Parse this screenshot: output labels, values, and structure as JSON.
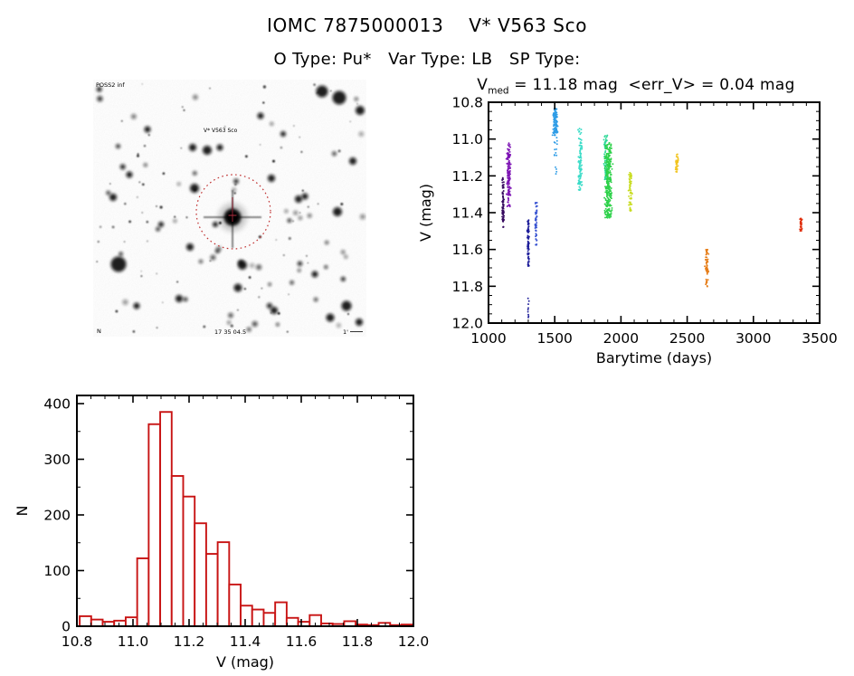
{
  "header": {
    "title": "IOMC 7875000013    V* V563 Sco",
    "subtitle": "O Type: Pu*   Var Type: LB   SP Type:"
  },
  "finder_chart": {
    "survey_label": "POSS2 inf",
    "star_label": "V* V563 Sco",
    "coords_label": "17 35 04.5",
    "orientation_label": "N",
    "scale_label": "1'",
    "marker_color": "#c03030"
  },
  "chart_data": [
    {
      "type": "scatter",
      "title_prefix": "V",
      "title_sub": "med",
      "title_rest": " = 11.18 mag  <err_V> = 0.04 mag",
      "xlabel": "Barytime (days)",
      "ylabel": "V (mag)",
      "xlim": [
        1000,
        3500
      ],
      "ylim": [
        12.0,
        10.8
      ],
      "x_ticks": [
        1000,
        1500,
        2000,
        2500,
        3000,
        3500
      ],
      "y_ticks": [
        10.8,
        11.0,
        11.2,
        11.4,
        11.6,
        11.8,
        12.0
      ],
      "x_minor_step": 100,
      "y_minor_step": 0.05,
      "grid": false,
      "legend": false,
      "clusters": [
        {
          "t": 1110,
          "sx": 0.7,
          "color": "#360a5f",
          "segments": [
            [
              11.21,
              11.48,
              80
            ]
          ]
        },
        {
          "t": 1152,
          "sx": 1.4,
          "color": "#7d14b4",
          "segments": [
            [
              11.02,
              11.09,
              14
            ],
            [
              11.08,
              11.31,
              110
            ],
            [
              11.3,
              11.37,
              12
            ]
          ]
        },
        {
          "t": 1300,
          "sx": 0.7,
          "color": "#1f1f9a",
          "segments": [
            [
              11.44,
              11.69,
              90
            ],
            [
              11.86,
              11.97,
              9
            ]
          ]
        },
        {
          "t": 1360,
          "sx": 0.9,
          "color": "#3a55d2",
          "segments": [
            [
              11.34,
              11.47,
              28
            ],
            [
              11.46,
              11.58,
              22
            ]
          ]
        },
        {
          "t": 1505,
          "sx": 1.6,
          "color": "#2e9ce6",
          "segments": [
            [
              10.83,
              10.97,
              110
            ],
            [
              10.96,
              11.09,
              18
            ],
            [
              11.15,
              11.19,
              4
            ]
          ]
        },
        {
          "t": 1692,
          "sx": 1.3,
          "color": "#3cdcc8",
          "segments": [
            [
              10.94,
              11.03,
              12
            ],
            [
              11.02,
              11.28,
              95
            ]
          ]
        },
        {
          "t": 1885,
          "sx": 1.2,
          "color": "#2bd896",
          "segments": [
            [
              10.98,
              11.22,
              70
            ]
          ]
        },
        {
          "t": 1905,
          "sx": 2.6,
          "color": "#2ed14a",
          "segments": [
            [
              11.02,
              11.43,
              300
            ]
          ]
        },
        {
          "t": 2070,
          "sx": 1.2,
          "color": "#c8dc20",
          "segments": [
            [
              11.18,
              11.4,
              60
            ]
          ]
        },
        {
          "t": 2422,
          "sx": 1.0,
          "color": "#f2c41e",
          "segments": [
            [
              11.08,
              11.18,
              40
            ]
          ]
        },
        {
          "t": 2648,
          "sx": 1.1,
          "color": "#e67d18",
          "segments": [
            [
              11.6,
              11.72,
              45
            ],
            [
              11.71,
              11.81,
              16
            ]
          ]
        },
        {
          "t": 3360,
          "sx": 0.9,
          "color": "#e0300e",
          "segments": [
            [
              11.43,
              11.5,
              28
            ]
          ]
        }
      ]
    },
    {
      "type": "histogram",
      "xlabel": "V (mag)",
      "ylabel": "N",
      "xlim": [
        10.8,
        12.0
      ],
      "ylim": [
        0,
        400
      ],
      "x_ticks": [
        10.8,
        11.0,
        11.2,
        11.4,
        11.6,
        11.8,
        12.0
      ],
      "y_ticks": [
        0,
        100,
        200,
        300,
        400
      ],
      "x_minor_step": 0.05,
      "y_minor_step": 50,
      "bin_start": 10.81,
      "bin_width": 0.041,
      "values": [
        18,
        12,
        8,
        10,
        16,
        122,
        363,
        385,
        270,
        233,
        185,
        130,
        151,
        75,
        37,
        30,
        24,
        43,
        15,
        8,
        20,
        5,
        4,
        9,
        3,
        2,
        6,
        2,
        3
      ],
      "bar_color": "#c81414",
      "grid": false,
      "legend": false
    }
  ]
}
